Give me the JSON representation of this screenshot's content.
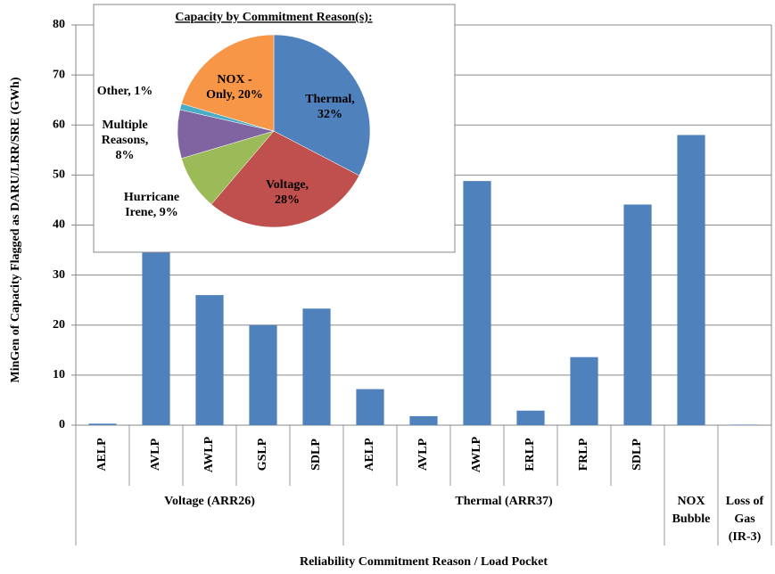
{
  "chart_data": [
    {
      "type": "bar",
      "x_label": "Reliability Commitment Reason / Load Pocket",
      "y_label": "MinGen of Capacity Flagged as DARU/LRR/SRE (GWh)",
      "categories": [
        "AELP",
        "AVLP",
        "AWLP",
        "GSLP",
        "SDLP",
        "AELP",
        "AVLP",
        "AWLP",
        "ERLP",
        "FRLP",
        "SDLP",
        null,
        null
      ],
      "values": [
        0.3,
        35.5,
        26,
        20,
        23.3,
        7.2,
        1.8,
        48.8,
        2.9,
        13.6,
        44.1,
        58,
        0.1
      ],
      "groups": [
        {
          "name": [
            "Voltage (ARR26)"
          ],
          "size": 5
        },
        {
          "name": [
            "Thermal (ARR37)"
          ],
          "size": 6
        },
        {
          "name": [
            "NOX",
            "Bubble"
          ],
          "size": 1
        },
        {
          "name": [
            "Loss of",
            "Gas",
            "(IR-3)"
          ],
          "size": 1
        }
      ],
      "color": "#4f81bd",
      "ylim": [
        0,
        80
      ],
      "yticks": [
        0,
        10,
        20,
        30,
        40,
        50,
        60,
        70,
        80
      ],
      "grid": true
    },
    {
      "type": "pie",
      "title": "Capacity by Commitment Reason(s):",
      "values": [
        32,
        28,
        9,
        8,
        1,
        20
      ],
      "value_labels": [
        [
          "Thermal,",
          "32%"
        ],
        [
          "Voltage,",
          "28%"
        ],
        [
          "Hurricane",
          "Irene, 9%"
        ],
        [
          "Multiple",
          "Reasons,",
          "8%"
        ],
        [
          "Other, 1%"
        ],
        [
          "NOX -",
          "Only, 20%"
        ]
      ],
      "colors": [
        "#4f81bd",
        "#c0504d",
        "#9bbb59",
        "#8064a2",
        "#4bacc6",
        "#f79646"
      ]
    }
  ]
}
